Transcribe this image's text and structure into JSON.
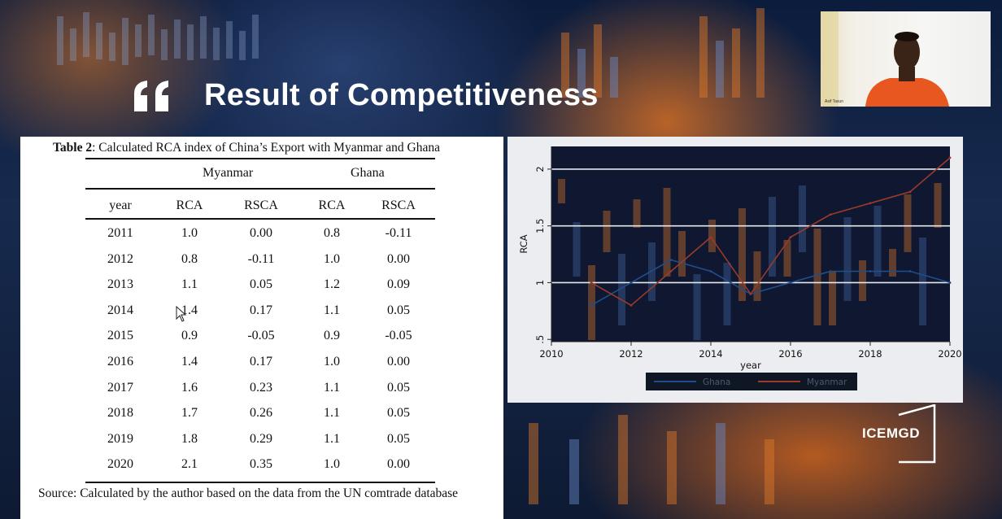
{
  "slide": {
    "title": "Result of Competitiveness",
    "logo": "ICEMGD"
  },
  "webcam": {
    "name_label": "Asif Tasun"
  },
  "table": {
    "caption_bold": "Table 2",
    "caption_rest": ": Calculated RCA index of  China’s Export with Myanmar and Ghana",
    "groups": [
      "Myanmar",
      "Ghana"
    ],
    "columns": [
      "year",
      "RCA",
      "RSCA",
      "RCA",
      "RSCA"
    ],
    "rows": [
      [
        "2011",
        "1.0",
        "0.00",
        "0.8",
        "-0.11"
      ],
      [
        "2012",
        "0.8",
        "-0.11",
        "1.0",
        "0.00"
      ],
      [
        "2013",
        "1.1",
        "0.05",
        "1.2",
        "0.09"
      ],
      [
        "2014",
        "1.4",
        "0.17",
        "1.1",
        "0.05"
      ],
      [
        "2015",
        "0.9",
        "-0.05",
        "0.9",
        "-0.05"
      ],
      [
        "2016",
        "1.4",
        "0.17",
        "1.0",
        "0.00"
      ],
      [
        "2017",
        "1.6",
        "0.23",
        "1.1",
        "0.05"
      ],
      [
        "2018",
        "1.7",
        "0.26",
        "1.1",
        "0.05"
      ],
      [
        "2019",
        "1.8",
        "0.29",
        "1.1",
        "0.05"
      ],
      [
        "2020",
        "2.1",
        "0.35",
        "1.0",
        "0.00"
      ]
    ],
    "source": "Source: Calculated by the author based on the data from the UN comtrade database"
  },
  "chart_data": {
    "type": "line",
    "xlabel": "year",
    "ylabel": "RCA",
    "x_ticks": [
      "2010",
      "2012",
      "2014",
      "2016",
      "2018",
      "2020"
    ],
    "y_ticks": [
      "2",
      "1.5",
      "1",
      ".5"
    ],
    "xlim": [
      2010,
      2020
    ],
    "ylim": [
      0.48,
      2.2
    ],
    "x": [
      2011,
      2012,
      2013,
      2014,
      2015,
      2016,
      2017,
      2018,
      2019,
      2020
    ],
    "series": [
      {
        "name": "Ghana",
        "color": "#1f4e8c",
        "values": [
          0.8,
          1.0,
          1.2,
          1.1,
          0.9,
          1.0,
          1.1,
          1.1,
          1.1,
          1.0
        ]
      },
      {
        "name": "Myanmar",
        "color": "#9a3a2a",
        "values": [
          1.0,
          0.8,
          1.1,
          1.4,
          0.9,
          1.4,
          1.6,
          1.7,
          1.8,
          2.1
        ]
      }
    ],
    "hlines": [
      2,
      1.5,
      1
    ],
    "grid": true,
    "legend": "bottom"
  },
  "colors": {
    "title": "#ffffff",
    "chart_background": "#ecedf0",
    "accent_orange": "#e8781e"
  }
}
